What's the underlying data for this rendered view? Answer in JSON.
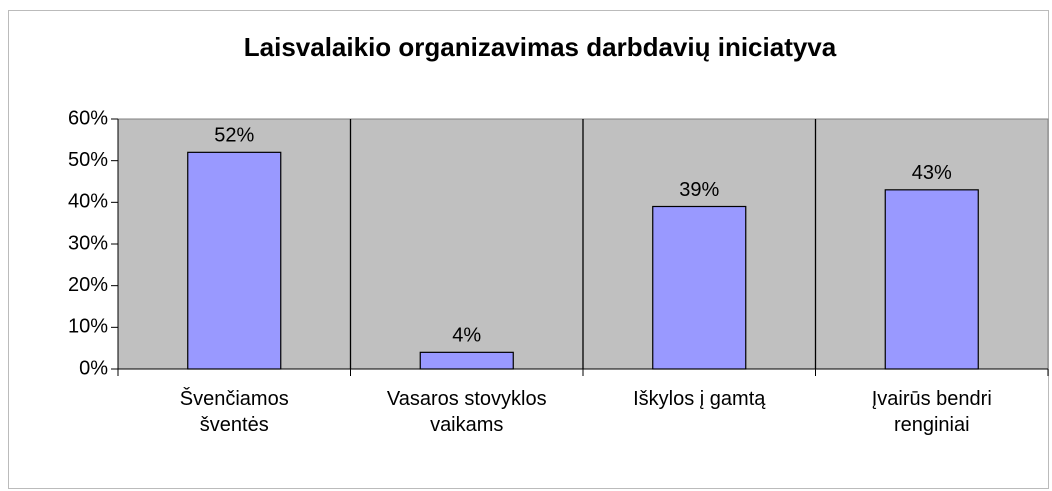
{
  "chart_data": {
    "type": "bar",
    "title": "Laisvalaikio organizavimas darbdavių iniciatyva",
    "categories": [
      "Švenčiamos šventės",
      "Vasaros stovyklos vaikams",
      "Iškylos į gamtą",
      "Įvairūs bendri renginiai"
    ],
    "values": [
      52,
      4,
      39,
      43
    ],
    "value_labels": [
      "52%",
      "4%",
      "39%",
      "43%"
    ],
    "color": "#9999ff",
    "ylim": [
      0,
      60
    ],
    "yticks": [
      {
        "value": 0,
        "label": "0%"
      },
      {
        "value": 10,
        "label": "10%"
      },
      {
        "value": 20,
        "label": "20%"
      },
      {
        "value": 30,
        "label": "30%"
      },
      {
        "value": 40,
        "label": "40%"
      },
      {
        "value": 50,
        "label": "50%"
      },
      {
        "value": 60,
        "label": "60%"
      }
    ]
  }
}
